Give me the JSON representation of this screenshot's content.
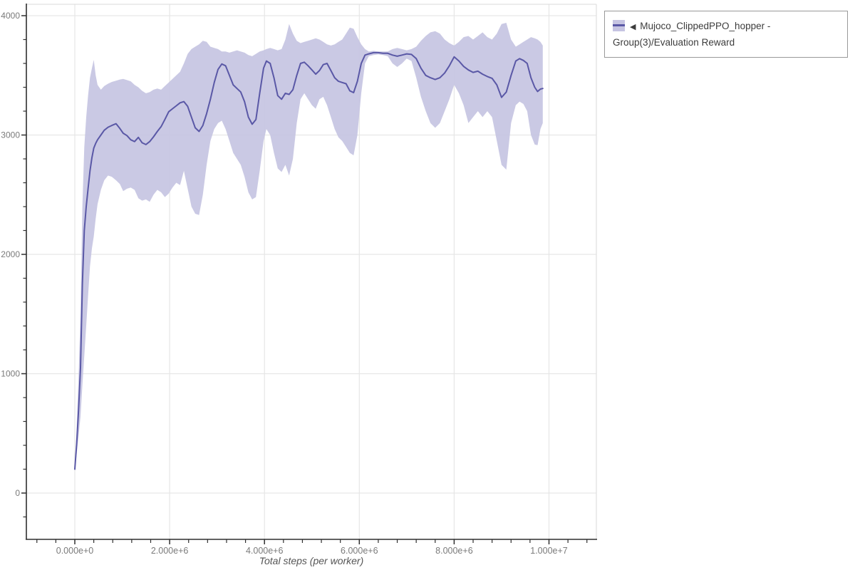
{
  "colors": {
    "line": "#5a58a6",
    "band": "#c6c4e2",
    "grid": "#e6e6e6",
    "frame": "#e0e0e0",
    "axis": "#2f2f2f",
    "tick_label": "#7a7a7a",
    "axis_title": "#555555",
    "legend_border": "#999999",
    "legend_text": "#3c3c3c"
  },
  "legend": {
    "caret": "◀",
    "label": "Mujoco_ClippedPPO_hopper - Group(3)/Evaluation Reward"
  },
  "chart_data": {
    "type": "line",
    "title": "",
    "xlabel": "Total steps (per worker)",
    "ylabel": "",
    "grid": true,
    "legend_position": "top-right",
    "xlim": [
      -1020000,
      11000000
    ],
    "ylim": [
      -390,
      4095
    ],
    "x_tick_values": [
      0,
      2000000,
      4000000,
      6000000,
      8000000,
      10000000
    ],
    "x_tick_labels": [
      "0.000e+0",
      "2.000e+6",
      "4.000e+6",
      "6.000e+6",
      "8.000e+6",
      "1.000e+7"
    ],
    "x_minor_step": 400000,
    "y_tick_values": [
      0,
      1000,
      2000,
      3000,
      4000
    ],
    "y_tick_labels": [
      "0",
      "1000",
      "2000",
      "3000",
      "4000"
    ],
    "y_minor_step": 200,
    "series_name": "Mujoco_ClippedPPO_hopper - Group(3)/Evaluation Reward",
    "x_e6": [
      0,
      0.04,
      0.08,
      0.12,
      0.16,
      0.2,
      0.24,
      0.28,
      0.32,
      0.36,
      0.4,
      0.44,
      0.48,
      0.55,
      0.62,
      0.7,
      0.78,
      0.87,
      0.95,
      1.02,
      1.1,
      1.18,
      1.26,
      1.34,
      1.42,
      1.5,
      1.58,
      1.66,
      1.74,
      1.82,
      1.9,
      1.98,
      2.06,
      2.14,
      2.22,
      2.3,
      2.38,
      2.46,
      2.54,
      2.62,
      2.7,
      2.78,
      2.86,
      2.94,
      3.02,
      3.1,
      3.18,
      3.26,
      3.34,
      3.42,
      3.5,
      3.58,
      3.66,
      3.74,
      3.82,
      3.9,
      3.98,
      4.04,
      4.12,
      4.2,
      4.28,
      4.36,
      4.44,
      4.52,
      4.6,
      4.68,
      4.76,
      4.84,
      4.92,
      5.0,
      5.08,
      5.16,
      5.24,
      5.32,
      5.4,
      5.48,
      5.56,
      5.64,
      5.72,
      5.8,
      5.88,
      5.96,
      6.04,
      6.12,
      6.2,
      6.3,
      6.4,
      6.5,
      6.6,
      6.7,
      6.8,
      6.9,
      7.0,
      7.1,
      7.2,
      7.3,
      7.4,
      7.5,
      7.6,
      7.7,
      7.8,
      7.9,
      8.0,
      8.1,
      8.2,
      8.3,
      8.4,
      8.5,
      8.6,
      8.7,
      8.8,
      8.9,
      9.0,
      9.1,
      9.2,
      9.3,
      9.38,
      9.46,
      9.54,
      9.62,
      9.7,
      9.76,
      9.82,
      9.87
    ],
    "mean": [
      200,
      420,
      700,
      1050,
      1750,
      2200,
      2400,
      2550,
      2700,
      2810,
      2890,
      2930,
      2960,
      3000,
      3040,
      3065,
      3080,
      3095,
      3055,
      3015,
      2995,
      2960,
      2945,
      2980,
      2935,
      2920,
      2945,
      2985,
      3030,
      3070,
      3130,
      3195,
      3220,
      3245,
      3270,
      3280,
      3240,
      3150,
      3060,
      3030,
      3080,
      3180,
      3300,
      3440,
      3550,
      3595,
      3580,
      3500,
      3420,
      3390,
      3360,
      3280,
      3150,
      3090,
      3130,
      3350,
      3560,
      3620,
      3600,
      3480,
      3330,
      3300,
      3350,
      3340,
      3380,
      3500,
      3600,
      3610,
      3580,
      3545,
      3510,
      3540,
      3590,
      3600,
      3540,
      3480,
      3450,
      3440,
      3430,
      3370,
      3355,
      3450,
      3600,
      3670,
      3680,
      3690,
      3690,
      3685,
      3685,
      3670,
      3660,
      3670,
      3680,
      3675,
      3640,
      3560,
      3500,
      3480,
      3465,
      3480,
      3520,
      3580,
      3655,
      3620,
      3575,
      3545,
      3525,
      3535,
      3510,
      3490,
      3475,
      3420,
      3315,
      3360,
      3500,
      3620,
      3640,
      3625,
      3600,
      3480,
      3400,
      3365,
      3385,
      3390
    ],
    "lower": [
      190,
      330,
      480,
      640,
      900,
      1150,
      1400,
      1650,
      1900,
      2050,
      2150,
      2300,
      2420,
      2540,
      2620,
      2660,
      2650,
      2620,
      2590,
      2530,
      2550,
      2560,
      2540,
      2470,
      2450,
      2460,
      2440,
      2500,
      2540,
      2520,
      2480,
      2510,
      2560,
      2600,
      2580,
      2700,
      2550,
      2400,
      2340,
      2330,
      2500,
      2750,
      2950,
      3050,
      3100,
      3120,
      3050,
      2950,
      2850,
      2800,
      2750,
      2650,
      2520,
      2460,
      2480,
      2700,
      2950,
      3050,
      3000,
      2850,
      2720,
      2690,
      2750,
      2660,
      2800,
      3100,
      3300,
      3350,
      3300,
      3250,
      3220,
      3300,
      3320,
      3250,
      3150,
      3050,
      2980,
      2950,
      2900,
      2850,
      2830,
      3000,
      3350,
      3600,
      3660,
      3670,
      3675,
      3670,
      3660,
      3600,
      3570,
      3600,
      3640,
      3620,
      3480,
      3320,
      3200,
      3100,
      3060,
      3100,
      3200,
      3300,
      3420,
      3350,
      3250,
      3100,
      3150,
      3200,
      3150,
      3200,
      3150,
      2950,
      2750,
      2710,
      3100,
      3250,
      3280,
      3260,
      3200,
      3000,
      2920,
      2915,
      3050,
      3100
    ],
    "upper": [
      215,
      560,
      980,
      1500,
      2400,
      2900,
      3150,
      3330,
      3480,
      3560,
      3630,
      3500,
      3420,
      3380,
      3410,
      3430,
      3445,
      3455,
      3465,
      3470,
      3460,
      3450,
      3420,
      3400,
      3370,
      3350,
      3360,
      3380,
      3390,
      3380,
      3410,
      3440,
      3470,
      3500,
      3530,
      3600,
      3680,
      3720,
      3740,
      3760,
      3790,
      3780,
      3740,
      3730,
      3720,
      3700,
      3700,
      3690,
      3700,
      3710,
      3700,
      3690,
      3670,
      3660,
      3680,
      3700,
      3710,
      3720,
      3730,
      3720,
      3710,
      3720,
      3800,
      3930,
      3850,
      3790,
      3770,
      3780,
      3790,
      3800,
      3810,
      3800,
      3780,
      3760,
      3750,
      3760,
      3780,
      3800,
      3850,
      3900,
      3890,
      3820,
      3760,
      3720,
      3700,
      3705,
      3700,
      3700,
      3700,
      3720,
      3730,
      3720,
      3710,
      3720,
      3740,
      3790,
      3830,
      3860,
      3870,
      3850,
      3800,
      3770,
      3750,
      3780,
      3820,
      3830,
      3800,
      3830,
      3860,
      3820,
      3800,
      3850,
      3930,
      3940,
      3800,
      3740,
      3760,
      3780,
      3800,
      3820,
      3810,
      3800,
      3780,
      3750
    ]
  }
}
